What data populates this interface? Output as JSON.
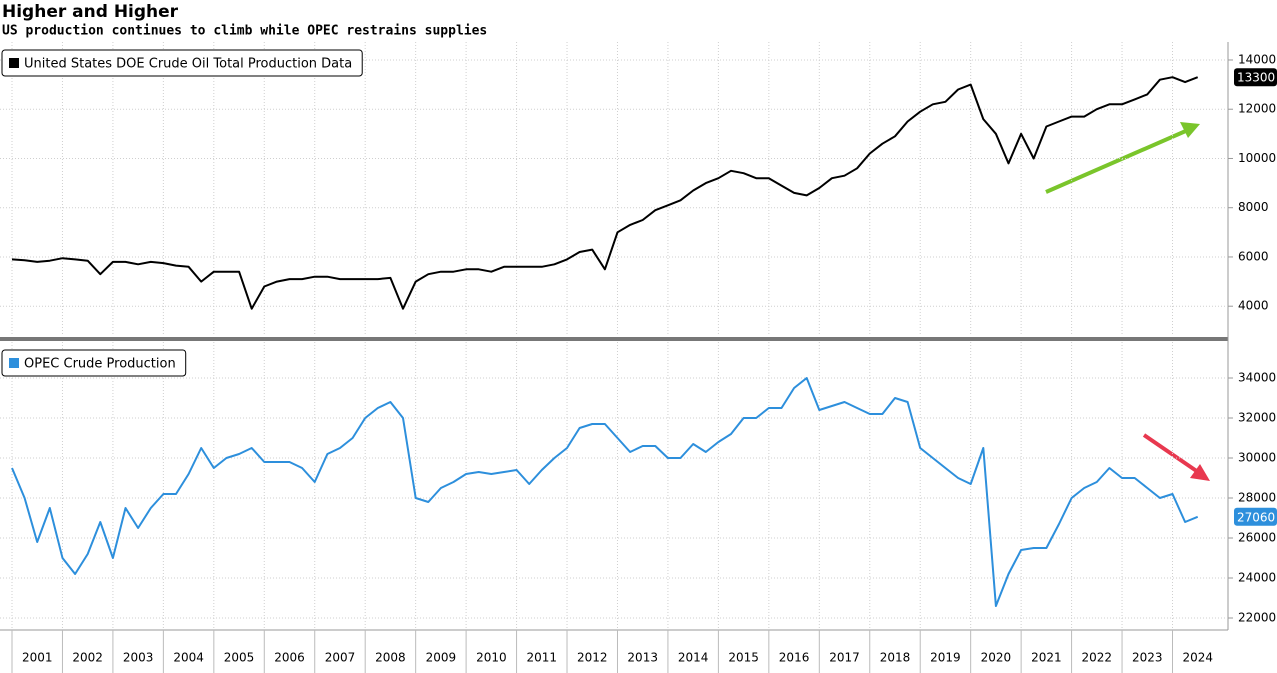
{
  "chart_data": [
    {
      "type": "line",
      "title": "Higher and Higher",
      "subtitle": "US production continues to climb while OPEC restrains supplies",
      "x": [
        2001,
        2001.25,
        2001.5,
        2001.75,
        2002,
        2002.25,
        2002.5,
        2002.75,
        2003,
        2003.25,
        2003.5,
        2003.75,
        2004,
        2004.25,
        2004.5,
        2004.75,
        2005,
        2005.25,
        2005.5,
        2005.75,
        2006,
        2006.25,
        2006.5,
        2006.75,
        2007,
        2007.25,
        2007.5,
        2007.75,
        2008,
        2008.25,
        2008.5,
        2008.75,
        2009,
        2009.25,
        2009.5,
        2009.75,
        2010,
        2010.25,
        2010.5,
        2010.75,
        2011,
        2011.25,
        2011.5,
        2011.75,
        2012,
        2012.25,
        2012.5,
        2012.75,
        2013,
        2013.25,
        2013.5,
        2013.75,
        2014,
        2014.25,
        2014.5,
        2014.75,
        2015,
        2015.25,
        2015.5,
        2015.75,
        2016,
        2016.25,
        2016.5,
        2016.75,
        2017,
        2017.25,
        2017.5,
        2017.75,
        2018,
        2018.25,
        2018.5,
        2018.75,
        2019,
        2019.25,
        2019.5,
        2019.75,
        2020,
        2020.25,
        2020.5,
        2020.75,
        2021,
        2021.25,
        2021.5,
        2021.75,
        2022,
        2022.25,
        2022.5,
        2022.75,
        2023,
        2023.25,
        2023.5,
        2023.75,
        2024,
        2024.25,
        2024.5
      ],
      "series": [
        {
          "name": "United States DOE Crude Oil Total Production Data",
          "color": "#000000",
          "values": [
            5900,
            5870,
            5800,
            5850,
            5950,
            5900,
            5850,
            5300,
            5800,
            5800,
            5700,
            5800,
            5750,
            5650,
            5600,
            5000,
            5400,
            5400,
            5400,
            3900,
            4800,
            5000,
            5100,
            5100,
            5200,
            5200,
            5100,
            5100,
            5100,
            5100,
            5150,
            3900,
            5000,
            5300,
            5400,
            5400,
            5500,
            5500,
            5400,
            5600,
            5600,
            5600,
            5600,
            5700,
            5900,
            6200,
            6300,
            5500,
            7000,
            7300,
            7500,
            7900,
            8100,
            8300,
            8700,
            9000,
            9200,
            9500,
            9400,
            9200,
            9200,
            8900,
            8600,
            8500,
            8800,
            9200,
            9300,
            9600,
            10200,
            10600,
            10900,
            11500,
            11900,
            12200,
            12300,
            12800,
            13000,
            11600,
            11000,
            9800,
            11000,
            10000,
            11300,
            11500,
            11700,
            11700,
            12000,
            12200,
            12200,
            12400,
            12600,
            13200,
            13300,
            13100,
            13300
          ]
        }
      ],
      "xlim": [
        2001,
        2025.1
      ],
      "ylim": [
        2790,
        14730
      ],
      "yticks": [
        4000,
        6000,
        8000,
        10000,
        12000,
        14000
      ],
      "grid": true,
      "legend": "upper left"
    },
    {
      "type": "line",
      "x": [
        2001,
        2001.25,
        2001.5,
        2001.75,
        2002,
        2002.25,
        2002.5,
        2002.75,
        2003,
        2003.25,
        2003.5,
        2003.75,
        2004,
        2004.25,
        2004.5,
        2004.75,
        2005,
        2005.25,
        2005.5,
        2005.75,
        2006,
        2006.25,
        2006.5,
        2006.75,
        2007,
        2007.25,
        2007.5,
        2007.75,
        2008,
        2008.25,
        2008.5,
        2008.75,
        2009,
        2009.25,
        2009.5,
        2009.75,
        2010,
        2010.25,
        2010.5,
        2010.75,
        2011,
        2011.25,
        2011.5,
        2011.75,
        2012,
        2012.25,
        2012.5,
        2012.75,
        2013,
        2013.25,
        2013.5,
        2013.75,
        2014,
        2014.25,
        2014.5,
        2014.75,
        2015,
        2015.25,
        2015.5,
        2015.75,
        2016,
        2016.25,
        2016.5,
        2016.75,
        2017,
        2017.25,
        2017.5,
        2017.75,
        2018,
        2018.25,
        2018.5,
        2018.75,
        2019,
        2019.25,
        2019.5,
        2019.75,
        2020,
        2020.25,
        2020.5,
        2020.75,
        2021,
        2021.25,
        2021.5,
        2021.75,
        2022,
        2022.25,
        2022.5,
        2022.75,
        2023,
        2023.25,
        2023.5,
        2023.75,
        2024,
        2024.25,
        2024.5
      ],
      "series": [
        {
          "name": "OPEC Crude Production",
          "color": "#2d8fdc",
          "values": [
            29500,
            28000,
            25800,
            27500,
            25000,
            24200,
            25200,
            26800,
            25000,
            27500,
            26500,
            27500,
            28200,
            28200,
            29200,
            30500,
            29500,
            30000,
            30200,
            30500,
            29800,
            29800,
            29800,
            29500,
            28800,
            30200,
            30500,
            31000,
            32000,
            32500,
            32800,
            32000,
            28000,
            27800,
            28500,
            28800,
            29200,
            29300,
            29200,
            29300,
            29400,
            28700,
            29400,
            30000,
            30500,
            31500,
            31700,
            31700,
            31000,
            30300,
            30600,
            30600,
            30000,
            30000,
            30700,
            30300,
            30800,
            31200,
            32000,
            32000,
            32500,
            32500,
            33500,
            34000,
            32400,
            32600,
            32800,
            32500,
            32200,
            32200,
            33000,
            32800,
            30500,
            30000,
            29500,
            29000,
            28700,
            30500,
            22600,
            24200,
            25400,
            25500,
            25500,
            26700,
            28000,
            28500,
            28800,
            29500,
            29000,
            29000,
            28500,
            28000,
            28200,
            26800,
            27060
          ]
        }
      ],
      "xlim": [
        2001,
        2025.1
      ],
      "ylim": [
        21400,
        35800
      ],
      "yticks": [
        22000,
        24000,
        26000,
        28000,
        30000,
        32000,
        34000
      ],
      "xticks": [
        2001,
        2002,
        2003,
        2004,
        2005,
        2006,
        2007,
        2008,
        2009,
        2010,
        2011,
        2012,
        2013,
        2014,
        2015,
        2016,
        2017,
        2018,
        2019,
        2020,
        2021,
        2022,
        2023,
        2024
      ],
      "grid": true,
      "legend": "upper left"
    }
  ]
}
